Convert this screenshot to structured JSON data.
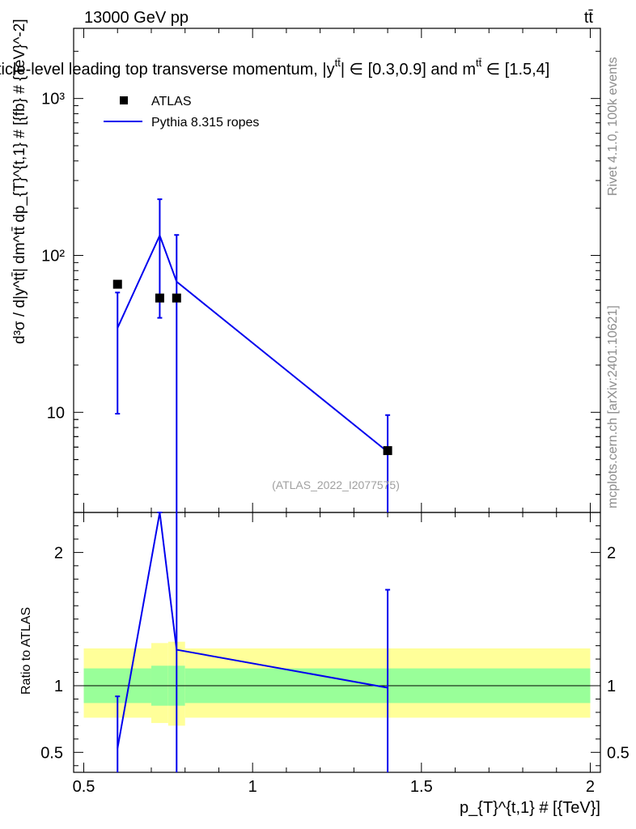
{
  "header": {
    "energy_label": "13000 GeV pp",
    "process_label": "tt̄",
    "plot_title": "ticle-level leading top transverse momentum, |y",
    "plot_title_sup": "tt̄",
    "plot_title_rest": "| ∈ [0.3,0.9] and m",
    "plot_title_sup2": "tt̄",
    "plot_title_end": " ∈ [1.5,4]",
    "watermark": "(ATLAS_2022_I2077575)"
  },
  "side_labels": {
    "rivet": "Rivet 4.1.0,  100k events",
    "mcplots": "mcplots.cern.ch [arXiv:2401.10621]"
  },
  "axes": {
    "ylabel_main": "d³σ / d|y^tt̄| dm^tt̄ dp_{T}^{t,1} # [{fb} # {TeV}^-2]",
    "ylabel_ratio": "Ratio to ATLAS",
    "xlabel": "p_{T}^{t,1} # [{TeV}]"
  },
  "legend": {
    "data_label": "ATLAS",
    "mc_label": "Pythia 8.315 ropes"
  },
  "colors": {
    "data": "#000000",
    "mc": "#0000ee",
    "band_inner": "#99ff99",
    "band_outer": "#ffff99"
  },
  "chart_data": {
    "type": "scatter",
    "x_range": [
      0.47,
      2.03
    ],
    "main": {
      "y_scale": "log",
      "ylim": [
        2.3,
        2800
      ],
      "y_ticks": [
        {
          "value": 10,
          "label": "10"
        },
        {
          "value": 100,
          "label": "10²"
        },
        {
          "value": 1000,
          "label": "10³"
        }
      ],
      "data": {
        "name": "ATLAS",
        "x": [
          0.6,
          0.725,
          0.775,
          1.4
        ],
        "y": [
          65.5,
          53.5,
          53.5,
          5.7
        ]
      },
      "mc": {
        "name": "Pythia 8.315 ropes",
        "x": [
          0.6,
          0.725,
          0.775,
          1.4
        ],
        "y": [
          34.5,
          134,
          68,
          5.6
        ],
        "err_low": [
          9.8,
          40,
          2.3,
          2.3
        ],
        "err_high": [
          58,
          228,
          135,
          9.6
        ]
      }
    },
    "ratio": {
      "ylim": [
        0.35,
        2.3
      ],
      "y_ticks": [
        {
          "value": 0.5,
          "label": "0.5"
        },
        {
          "value": 1,
          "label": "1"
        },
        {
          "value": 2,
          "label": "2"
        }
      ],
      "reference": 1,
      "mc": {
        "x": [
          0.6,
          0.725,
          0.775,
          1.4
        ],
        "y": [
          0.53,
          2.5,
          1.27,
          0.985
        ],
        "err_low": [
          0.3,
          2.5,
          0.3,
          0.3
        ],
        "err_high": [
          0.92,
          2.5,
          2.5,
          1.72
        ]
      },
      "bands": [
        {
          "x0": 0.5,
          "x1": 0.7,
          "inner": [
            0.87,
            1.13
          ],
          "outer": [
            0.76,
            1.28
          ]
        },
        {
          "x0": 0.7,
          "x1": 0.75,
          "inner": [
            0.85,
            1.15
          ],
          "outer": [
            0.72,
            1.32
          ]
        },
        {
          "x0": 0.75,
          "x1": 0.8,
          "inner": [
            0.85,
            1.15
          ],
          "outer": [
            0.7,
            1.33
          ]
        },
        {
          "x0": 0.8,
          "x1": 2.0,
          "inner": [
            0.87,
            1.13
          ],
          "outer": [
            0.76,
            1.28
          ]
        }
      ]
    },
    "x_ticks": [
      {
        "value": 0.5,
        "label": "0.5"
      },
      {
        "value": 1.0,
        "label": "1"
      },
      {
        "value": 1.5,
        "label": "1.5"
      },
      {
        "value": 2.0,
        "label": "2"
      }
    ]
  }
}
